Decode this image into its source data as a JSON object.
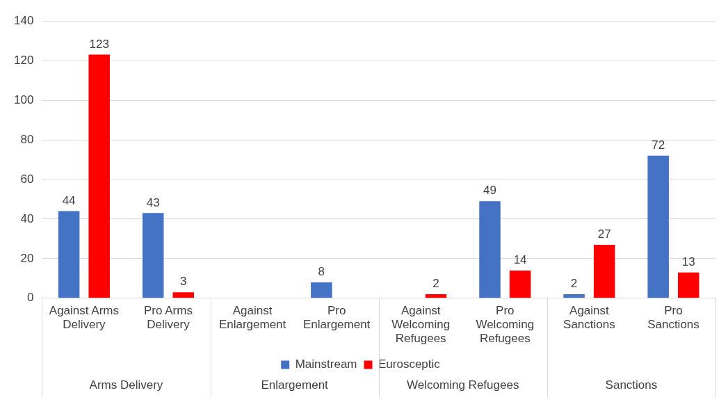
{
  "chart_data": {
    "type": "bar",
    "categories": [
      "Against Arms Delivery",
      "Pro Arms Delivery",
      "Against Enlargement",
      "Pro Enlargement",
      "Against Welcoming Refugees",
      "Pro Welcoming Refugees",
      "Against Sanctions",
      "Pro Sanctions"
    ],
    "series": [
      {
        "name": "Mainstream",
        "color": "#4472c4",
        "values": [
          44,
          43,
          null,
          8,
          null,
          49,
          2,
          72
        ]
      },
      {
        "name": "Eurosceptic",
        "color": "#ff0000",
        "values": [
          123,
          3,
          null,
          null,
          2,
          14,
          27,
          13
        ]
      }
    ],
    "annotations": [
      "Arms Delivery",
      "Enlargement",
      "Welcoming Refugees",
      "Sanctions"
    ],
    "ylim": [
      0,
      140
    ],
    "yticks": [
      0,
      20,
      40,
      60,
      80,
      100,
      120,
      140
    ],
    "grid": "y",
    "legend": "bottom",
    "data_labels": true
  }
}
